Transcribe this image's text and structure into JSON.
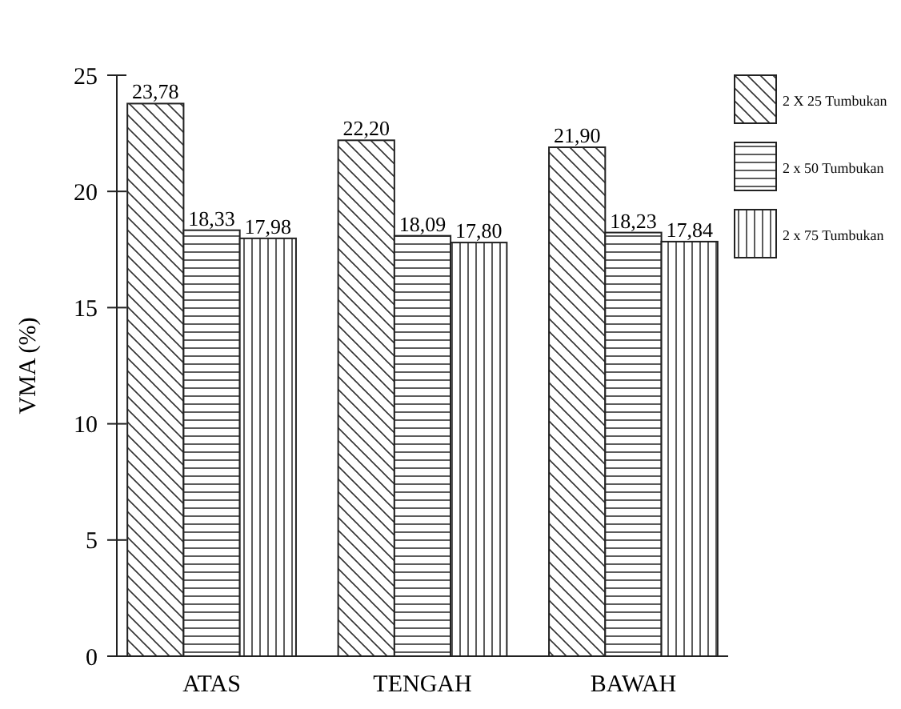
{
  "chart_data": {
    "type": "bar",
    "ylabel": "VMA (%)",
    "categories": [
      "ATAS",
      "TENGAH",
      "BAWAH"
    ],
    "ylim": [
      0,
      25
    ],
    "yticks": [
      0,
      5,
      10,
      15,
      20,
      25
    ],
    "grid": false,
    "legend": "top right",
    "series": [
      {
        "name": "2 X 25 Tumbukan",
        "color": "#ffffff",
        "values": [
          23.78,
          22.2,
          21.9
        ],
        "value_labels": [
          "23,78",
          "22,20",
          "21,90"
        ]
      },
      {
        "name": "2 x 50 Tumbukan",
        "color": "#ffffff",
        "values": [
          18.33,
          18.09,
          18.23
        ],
        "value_labels": [
          "18,33",
          "18,09",
          "18,23"
        ]
      },
      {
        "name": "2 x 75 Tumbukan",
        "color": "#ffffff",
        "values": [
          17.98,
          17.8,
          17.84
        ],
        "value_labels": [
          "17,98",
          "17,80",
          "17,84"
        ]
      }
    ]
  }
}
